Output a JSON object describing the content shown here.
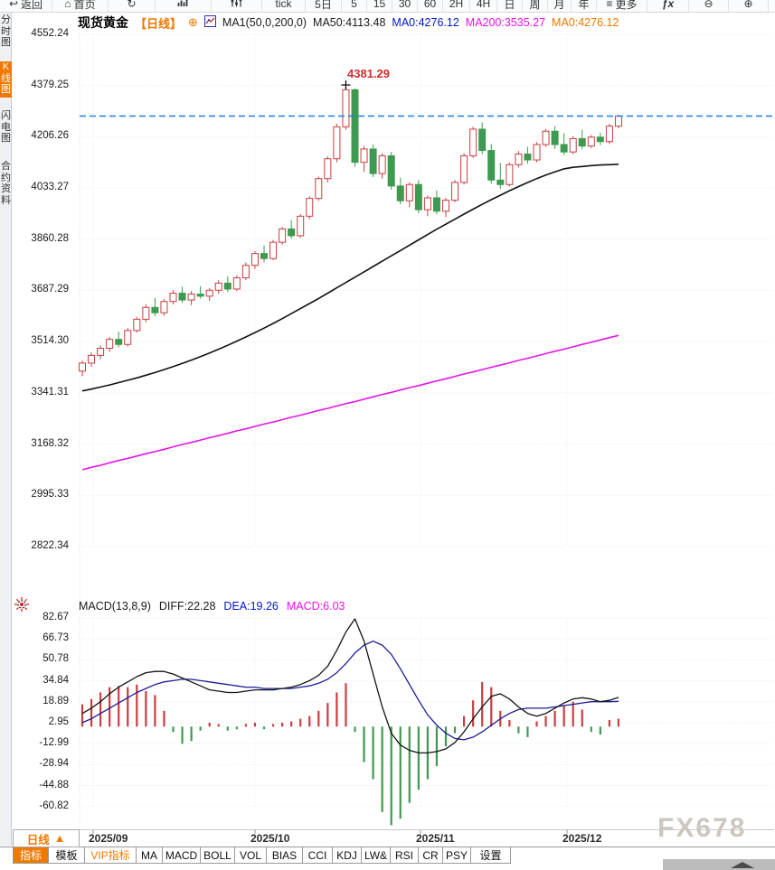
{
  "icons": {
    "back": "↩",
    "home": "⌂",
    "refresh": "↻",
    "menu": "≡",
    "zoom_out": "⊖",
    "zoom_in": "⊕",
    "add_circle": "⊕",
    "fx": "ƒx"
  },
  "toolbar": {
    "items": [
      {
        "name": "back-button",
        "label": "返回",
        "icon": "back"
      },
      {
        "name": "home-button",
        "label": "首页",
        "icon": "home"
      },
      {
        "name": "refresh-button",
        "icon": "refresh"
      },
      {
        "name": "chart-type-button",
        "icon": "bar_chart"
      },
      {
        "name": "indicator-settings-button",
        "icon": "sliders"
      },
      {
        "name": "period-tick-button",
        "label": "tick"
      },
      {
        "name": "period-5d-button",
        "label": "5日"
      },
      {
        "name": "period-5m-button",
        "label": "5"
      },
      {
        "name": "period-15m-button",
        "label": "15"
      },
      {
        "name": "period-30m-button",
        "label": "30"
      },
      {
        "name": "period-60m-button",
        "label": "60"
      },
      {
        "name": "period-2h-button",
        "label": "2H"
      },
      {
        "name": "period-4h-button",
        "label": "4H"
      },
      {
        "name": "period-day-button",
        "label": "日"
      },
      {
        "name": "period-week-button",
        "label": "周"
      },
      {
        "name": "period-month-button",
        "label": "月"
      },
      {
        "name": "period-year-button",
        "label": "年"
      },
      {
        "name": "more-button",
        "label": "更多",
        "icon": "menu"
      },
      {
        "name": "fx-button",
        "icon": "fx"
      },
      {
        "name": "zoom-out-button",
        "icon": "zoom_out"
      },
      {
        "name": "zoom-in-button",
        "icon": "zoom_in"
      }
    ]
  },
  "sidebar": {
    "items": [
      {
        "label": "分时图",
        "active": false
      },
      {
        "label": "K线图",
        "active": true
      },
      {
        "label": "闪电图",
        "active": false
      },
      {
        "label": "合约资料",
        "active": false
      }
    ]
  },
  "header": {
    "symbol": "现货黄金",
    "period": "【日线】",
    "ma_settings": "MA1(50,0,200,0)",
    "ma50": "MA50:4113.48",
    "ma0_primary": "MA0:4276.12",
    "ma200": "MA200:3535.27",
    "ma0_secondary": "MA0:4276.12"
  },
  "macd_header": {
    "params": "MACD(13,8,9)",
    "diff": "DIFF:22.28",
    "dea": "DEA:19.26",
    "macd": "MACD:6.03"
  },
  "watermark": "FX678",
  "xaxis": {
    "period": "日线",
    "arrow": "▲"
  },
  "tabs": [
    {
      "label": "指标",
      "active": true
    },
    {
      "label": "模板"
    },
    {
      "label": "VIP指标",
      "vip": true
    },
    {
      "label": "MA"
    },
    {
      "label": "MACD"
    },
    {
      "label": "BOLL"
    },
    {
      "label": "VOL"
    },
    {
      "label": "BIAS"
    },
    {
      "label": "CCI"
    },
    {
      "label": "KDJ"
    },
    {
      "label": "LW&"
    },
    {
      "label": "RSI"
    },
    {
      "label": "CR"
    },
    {
      "label": "PSY"
    },
    {
      "label": "设置"
    }
  ],
  "chart_data": [
    {
      "type": "candlestick",
      "title": "现货黄金 日线",
      "y_ticks": [
        "4552.24",
        "4379.25",
        "4206.26",
        "4033.27",
        "3860.28",
        "3687.29",
        "3514.30",
        "3341.31",
        "3168.32",
        "2995.33",
        "2822.34"
      ],
      "x_labels": [
        "2025/09",
        "2025/10",
        "2025/11",
        "2025/12"
      ],
      "current_price": 4276.12,
      "annotation": {
        "label": "4381.29",
        "value": 4381.29
      },
      "colors": {
        "up": "#cb3d3f",
        "down": "#3d9a50",
        "ma50": "#111111",
        "ma200": "#e614e6",
        "current_line": "#1d7de6"
      },
      "candles": [
        [
          3415,
          3450,
          3398,
          3442
        ],
        [
          3442,
          3478,
          3430,
          3468
        ],
        [
          3468,
          3502,
          3455,
          3492
        ],
        [
          3492,
          3530,
          3480,
          3522
        ],
        [
          3522,
          3548,
          3495,
          3505
        ],
        [
          3505,
          3560,
          3498,
          3552
        ],
        [
          3552,
          3598,
          3545,
          3590
        ],
        [
          3590,
          3640,
          3580,
          3630
        ],
        [
          3630,
          3662,
          3600,
          3612
        ],
        [
          3612,
          3658,
          3602,
          3650
        ],
        [
          3650,
          3688,
          3640,
          3678
        ],
        [
          3678,
          3700,
          3645,
          3655
        ],
        [
          3655,
          3685,
          3638,
          3675
        ],
        [
          3675,
          3702,
          3660,
          3668
        ],
        [
          3668,
          3695,
          3652,
          3688
        ],
        [
          3688,
          3722,
          3676,
          3712
        ],
        [
          3712,
          3735,
          3682,
          3692
        ],
        [
          3692,
          3738,
          3685,
          3730
        ],
        [
          3730,
          3782,
          3722,
          3772
        ],
        [
          3772,
          3820,
          3760,
          3812
        ],
        [
          3812,
          3840,
          3782,
          3795
        ],
        [
          3795,
          3858,
          3790,
          3850
        ],
        [
          3850,
          3902,
          3842,
          3895
        ],
        [
          3895,
          3925,
          3862,
          3872
        ],
        [
          3872,
          3945,
          3865,
          3938
        ],
        [
          3938,
          4005,
          3928,
          3998
        ],
        [
          3998,
          4072,
          3990,
          4065
        ],
        [
          4065,
          4140,
          4052,
          4132
        ],
        [
          4132,
          4250,
          4120,
          4240
        ],
        [
          4240,
          4381.29,
          4230,
          4365
        ],
        [
          4365,
          4370,
          4105,
          4120
        ],
        [
          4120,
          4175,
          4088,
          4165
        ],
        [
          4165,
          4180,
          4070,
          4082
        ],
        [
          4082,
          4150,
          4065,
          4142
        ],
        [
          4142,
          4155,
          4028,
          4040
        ],
        [
          4040,
          4068,
          3978,
          3990
        ],
        [
          3990,
          4052,
          3968,
          4045
        ],
        [
          4045,
          4060,
          3948,
          3960
        ],
        [
          3960,
          4008,
          3938,
          4000
        ],
        [
          4000,
          4025,
          3945,
          3955
        ],
        [
          3955,
          4000,
          3935,
          3992
        ],
        [
          3992,
          4060,
          3985,
          4052
        ],
        [
          4052,
          4150,
          4045,
          4142
        ],
        [
          4142,
          4240,
          4135,
          4232
        ],
        [
          4232,
          4255,
          4148,
          4160
        ],
        [
          4160,
          4182,
          4048,
          4060
        ],
        [
          4060,
          4118,
          4030,
          4045
        ],
        [
          4045,
          4120,
          4038,
          4112
        ],
        [
          4112,
          4158,
          4102,
          4148
        ],
        [
          4148,
          4172,
          4115,
          4128
        ],
        [
          4128,
          4188,
          4120,
          4180
        ],
        [
          4180,
          4232,
          4172,
          4225
        ],
        [
          4225,
          4242,
          4165,
          4180
        ],
        [
          4180,
          4218,
          4145,
          4155
        ],
        [
          4155,
          4208,
          4148,
          4200
        ],
        [
          4200,
          4230,
          4165,
          4175
        ],
        [
          4175,
          4212,
          4168,
          4205
        ],
        [
          4205,
          4220,
          4178,
          4190
        ],
        [
          4190,
          4250,
          4182,
          4242
        ],
        [
          4242,
          4281,
          4235,
          4276.12
        ]
      ],
      "ma50": [
        3348,
        3354,
        3361,
        3368,
        3376,
        3384,
        3392,
        3401,
        3410,
        3420,
        3430,
        3441,
        3452,
        3464,
        3476,
        3489,
        3502,
        3516,
        3530,
        3545,
        3560,
        3576,
        3592,
        3609,
        3626,
        3643,
        3660,
        3678,
        3696,
        3714,
        3732,
        3750,
        3768,
        3786,
        3804,
        3822,
        3840,
        3858,
        3876,
        3894,
        3911,
        3928,
        3945,
        3962,
        3978,
        3994,
        4009,
        4024,
        4038,
        4052,
        4065,
        4077,
        4088,
        4098,
        4103,
        4106,
        4109,
        4111,
        4112,
        4113.48
      ],
      "ma200": [
        3082,
        3090,
        3097,
        3105,
        3113,
        3120,
        3128,
        3136,
        3143,
        3151,
        3159,
        3167,
        3174,
        3182,
        3190,
        3197,
        3205,
        3213,
        3220,
        3228,
        3236,
        3243,
        3251,
        3259,
        3266,
        3274,
        3282,
        3289,
        3297,
        3305,
        3312,
        3320,
        3328,
        3336,
        3343,
        3351,
        3359,
        3366,
        3374,
        3382,
        3389,
        3397,
        3405,
        3412,
        3420,
        3428,
        3435,
        3443,
        3451,
        3458,
        3466,
        3474,
        3482,
        3489,
        3497,
        3505,
        3512,
        3520,
        3528,
        3535.27
      ]
    },
    {
      "type": "macd",
      "params": "MACD(13,8,9)",
      "diff": 22.28,
      "dea": 19.26,
      "macd": 6.03,
      "y_ticks": [
        "82.67",
        "66.73",
        "50.78",
        "34.84",
        "18.89",
        "2.95",
        "-12.99",
        "-28.94",
        "-44.88",
        "-60.82"
      ],
      "colors": {
        "diff": "#141414",
        "dea": "#1c1c96",
        "positive": "#cb3d3f",
        "negative": "#3d9a50"
      },
      "hist": [
        17,
        21,
        26,
        30,
        31,
        30,
        32,
        27,
        24,
        12,
        -4,
        -13,
        -11,
        -3,
        3,
        2,
        -3,
        -2,
        2,
        3,
        -2,
        2,
        3,
        4,
        6,
        8,
        12,
        18,
        26,
        33,
        -4,
        -27,
        -40,
        -65,
        -75,
        -70,
        -58,
        -48,
        -40,
        -30,
        -15,
        -5,
        8,
        20,
        34,
        30,
        12,
        5,
        -5,
        -8,
        4,
        8,
        12,
        16,
        19,
        13,
        -4,
        -6,
        5,
        6.03
      ],
      "diff_line": [
        10,
        14,
        19,
        25,
        30,
        34,
        38,
        41,
        42,
        42,
        40,
        37,
        34,
        31,
        28,
        27,
        26,
        26,
        27,
        28,
        28,
        28,
        29,
        30,
        32,
        35,
        39,
        46,
        58,
        72,
        82,
        65,
        40,
        15,
        -5,
        -14,
        -18,
        -20,
        -20,
        -19,
        -17,
        -12,
        -4,
        6,
        15,
        23,
        25,
        21,
        15,
        10,
        8,
        10,
        14,
        18,
        21,
        22,
        21,
        19,
        20,
        22.28
      ],
      "dea_line": [
        3,
        6,
        10,
        14,
        18,
        22,
        26,
        29,
        32,
        34,
        35,
        36,
        36,
        35,
        34,
        33,
        32,
        31,
        30,
        30,
        29,
        29,
        29,
        29,
        30,
        31,
        33,
        36,
        41,
        48,
        56,
        62,
        65,
        62,
        55,
        44,
        32,
        20,
        9,
        1,
        -5,
        -9,
        -10,
        -8,
        -4,
        1,
        6,
        10,
        13,
        14,
        14,
        14,
        15,
        16,
        17,
        18,
        19,
        19,
        19,
        19.26
      ]
    }
  ]
}
